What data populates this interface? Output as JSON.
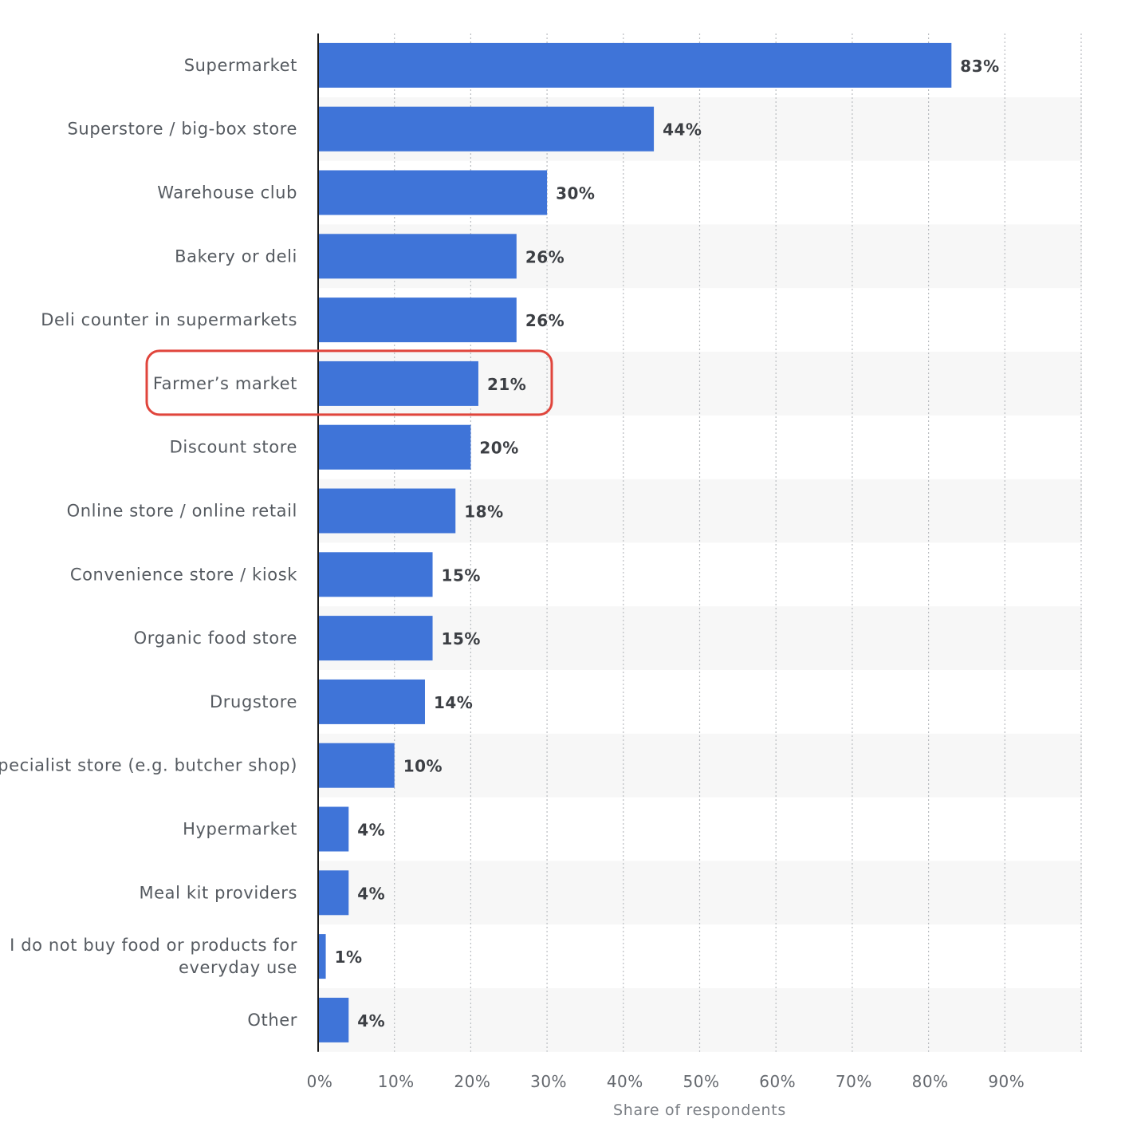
{
  "chart_data": {
    "type": "bar",
    "orientation": "horizontal",
    "categories": [
      "Supermarket",
      "Superstore / big-box store",
      "Warehouse club",
      "Bakery or deli",
      "Deli counter in supermarkets",
      "Farmer’s market",
      "Discount store",
      "Online store / online retail",
      "Convenience store / kiosk",
      "Organic food store",
      "Drugstore",
      "Specialist store (e.g. butcher shop)",
      "Hypermarket",
      "Meal kit providers",
      "I do not buy food or products for everyday use",
      "Other"
    ],
    "category_lines": [
      [
        "Supermarket"
      ],
      [
        "Superstore / big-box store"
      ],
      [
        "Warehouse club"
      ],
      [
        "Bakery or deli"
      ],
      [
        "Deli counter in supermarkets"
      ],
      [
        "Farmer’s market"
      ],
      [
        "Discount store"
      ],
      [
        "Online store / online retail"
      ],
      [
        "Convenience store / kiosk"
      ],
      [
        "Organic food store"
      ],
      [
        "Drugstore"
      ],
      [
        "Specialist store (e.g. butcher shop)"
      ],
      [
        "Hypermarket"
      ],
      [
        "Meal kit providers"
      ],
      [
        "I do not buy food or products for",
        "everyday use"
      ],
      [
        "Other"
      ]
    ],
    "values": [
      83,
      44,
      30,
      26,
      26,
      21,
      20,
      18,
      15,
      15,
      14,
      10,
      4,
      4,
      1,
      4
    ],
    "value_labels": [
      "83%",
      "44%",
      "30%",
      "26%",
      "26%",
      "21%",
      "20%",
      "18%",
      "15%",
      "15%",
      "14%",
      "10%",
      "4%",
      "4%",
      "1%",
      "4%"
    ],
    "xlabel": "Share of respondents",
    "ylabel": "",
    "xlim": [
      0,
      100
    ],
    "ticks": [
      0,
      10,
      20,
      30,
      40,
      50,
      60,
      70,
      80,
      90
    ],
    "tick_labels": [
      "0%",
      "10%",
      "20%",
      "30%",
      "40%",
      "50%",
      "60%",
      "70%",
      "80%",
      "90%"
    ],
    "grid": true,
    "highlighted_category": "Farmer’s market",
    "colors": {
      "bar": "#3f74d8",
      "highlight_box": "#e0453c",
      "band": "#f7f7f7",
      "grid": "#b9bcc0",
      "axis": "#1a1a1a"
    }
  }
}
